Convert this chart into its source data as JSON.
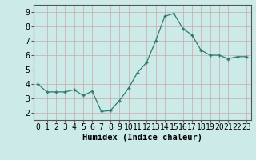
{
  "x": [
    0,
    1,
    2,
    3,
    4,
    5,
    6,
    7,
    8,
    9,
    10,
    11,
    12,
    13,
    14,
    15,
    16,
    17,
    18,
    19,
    20,
    21,
    22,
    23
  ],
  "y": [
    4.0,
    3.45,
    3.45,
    3.45,
    3.6,
    3.2,
    3.5,
    2.1,
    2.15,
    2.85,
    3.7,
    4.8,
    5.5,
    7.0,
    8.7,
    8.9,
    7.85,
    7.4,
    6.35,
    6.0,
    6.0,
    5.75,
    5.9,
    5.9
  ],
  "line_color": "#2d7d6e",
  "marker": "+",
  "marker_size": 3.5,
  "bg_color": "#cceae8",
  "grid_color": "#b0c8c8",
  "xlabel": "Humidex (Indice chaleur)",
  "xlabel_fontsize": 7.5,
  "tick_fontsize": 7,
  "ylim": [
    1.5,
    9.5
  ],
  "xlim": [
    -0.5,
    23.5
  ],
  "yticks": [
    2,
    3,
    4,
    5,
    6,
    7,
    8,
    9
  ],
  "xticks": [
    0,
    1,
    2,
    3,
    4,
    5,
    6,
    7,
    8,
    9,
    10,
    11,
    12,
    13,
    14,
    15,
    16,
    17,
    18,
    19,
    20,
    21,
    22,
    23
  ]
}
